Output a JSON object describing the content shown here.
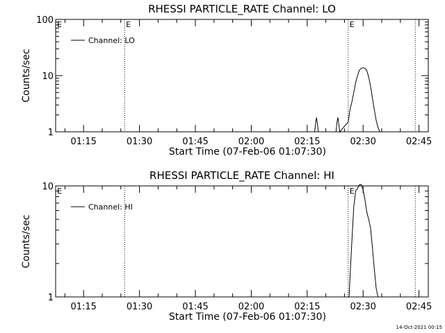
{
  "chart_data": [
    {
      "type": "line",
      "title": "RHESSI PARTICLE_RATE Channel: LO",
      "xlabel": "Start Time (07-Feb-06 01:07:30)",
      "ylabel": "Counts/sec",
      "yscale": "log",
      "ylim": [
        1,
        100
      ],
      "xlim": [
        "01:07:30",
        "02:47:30"
      ],
      "x_tick_labels": [
        "01:15",
        "01:30",
        "01:45",
        "02:00",
        "02:15",
        "02:30",
        "02:45"
      ],
      "y_tick_labels": [
        "1",
        "10",
        "100"
      ],
      "legend": {
        "position": "top-left",
        "entries": [
          "Channel: LO"
        ]
      },
      "event_markers": [
        {
          "time": "01:26:00",
          "label": "E",
          "style": "dotted"
        },
        {
          "time": "02:26:00",
          "label": "E",
          "style": "dotted"
        },
        {
          "time": "02:44:00",
          "label": "",
          "style": "dotted"
        }
      ],
      "corner_label": "E",
      "series": [
        {
          "name": "Channel: LO",
          "x": [
            "02:17:00",
            "02:17:15",
            "02:17:30",
            "02:17:45",
            "02:18:00",
            "02:22:45",
            "02:23:00",
            "02:23:15",
            "02:23:30",
            "02:23:45",
            "02:26:00",
            "02:26:30",
            "02:27:00",
            "02:27:30",
            "02:28:00",
            "02:28:30",
            "02:29:00",
            "02:29:30",
            "02:30:00",
            "02:30:30",
            "02:31:00",
            "02:31:30",
            "02:32:00",
            "02:32:30",
            "02:33:00",
            "02:33:30",
            "02:34:00",
            "02:34:30",
            "02:35:00"
          ],
          "values": [
            1,
            1.4,
            1.8,
            1.4,
            1,
            1,
            1.5,
            1.8,
            1.3,
            1,
            1.5,
            2.5,
            3.4,
            5,
            7.5,
            10,
            12.5,
            13.5,
            13.8,
            13.5,
            12.2,
            9.5,
            6.5,
            4,
            2.5,
            1.6,
            1.2,
            1,
            1
          ]
        }
      ]
    },
    {
      "type": "line",
      "title": "RHESSI PARTICLE_RATE Channel: HI",
      "xlabel": "Start Time (07-Feb-06 01:07:30)",
      "ylabel": "Counts/sec",
      "yscale": "log",
      "ylim": [
        1,
        10
      ],
      "xlim": [
        "01:07:30",
        "02:47:30"
      ],
      "x_tick_labels": [
        "01:15",
        "01:30",
        "01:45",
        "02:00",
        "02:15",
        "02:30",
        "02:45"
      ],
      "y_tick_labels": [
        "1",
        "10"
      ],
      "legend": {
        "position": "top-left",
        "entries": [
          "Channel: HI"
        ]
      },
      "event_markers": [
        {
          "time": "01:26:00",
          "label": "",
          "style": "dotted"
        },
        {
          "time": "02:26:00",
          "label": "E",
          "style": "dotted"
        },
        {
          "time": "02:44:00",
          "label": "",
          "style": "dotted"
        }
      ],
      "corner_label": "E",
      "series": [
        {
          "name": "Channel: HI",
          "x": [
            "02:26:15",
            "02:26:30",
            "02:27:00",
            "02:27:30",
            "02:28:00",
            "02:28:30",
            "02:29:00",
            "02:29:30",
            "02:30:00",
            "02:30:30",
            "02:31:00",
            "02:31:30",
            "02:32:00",
            "02:32:30",
            "02:33:00",
            "02:33:30",
            "02:34:00"
          ],
          "values": [
            1,
            1.5,
            3.2,
            6.5,
            9,
            9.5,
            10.2,
            10.3,
            9.2,
            7.5,
            5.8,
            5,
            4.2,
            2.8,
            1.8,
            1.2,
            1
          ]
        }
      ]
    }
  ],
  "footer": {
    "timestamp": "14-Oct-2021 00:15"
  }
}
